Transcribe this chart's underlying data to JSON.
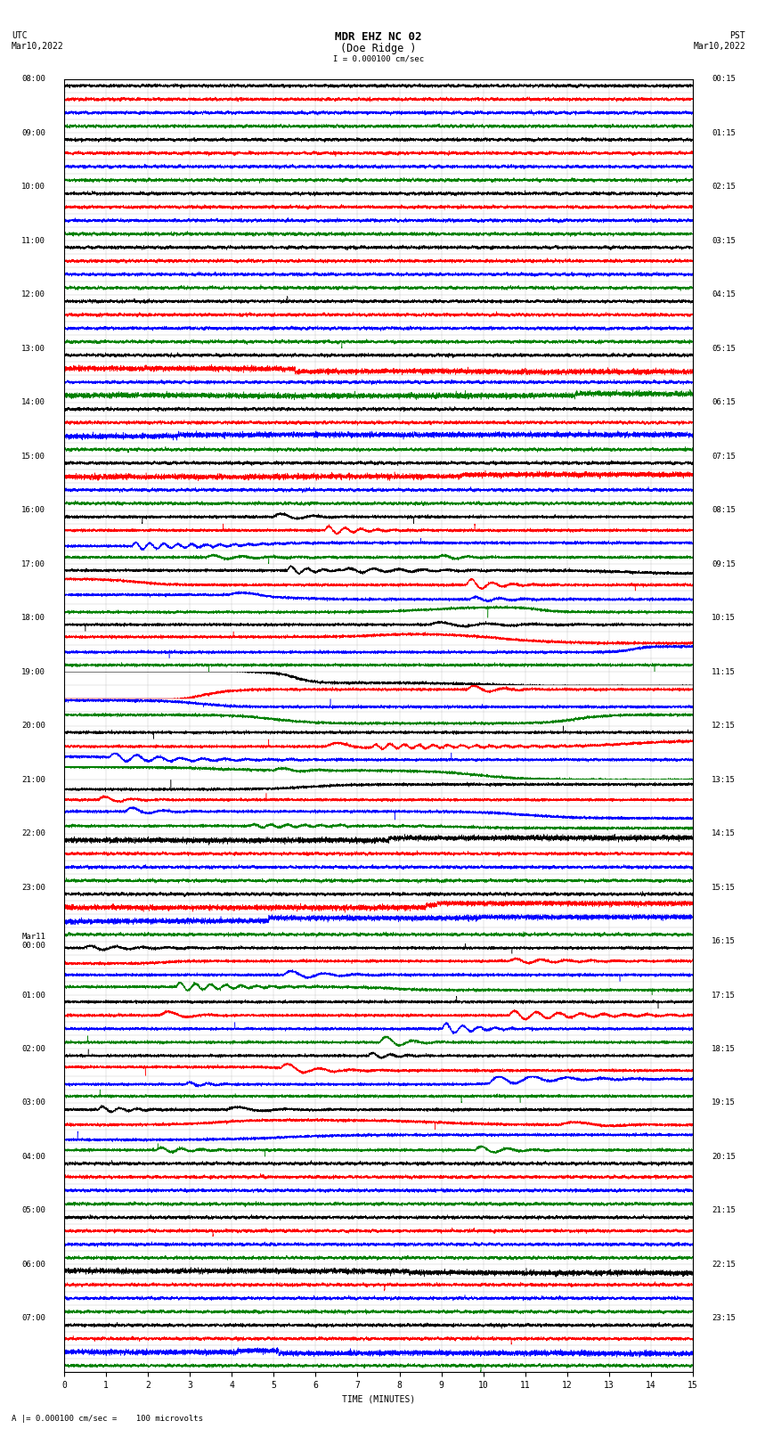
{
  "title_line1": "MDR EHZ NC 02",
  "title_line2": "(Doe Ridge )",
  "scale_label": "I = 0.000100 cm/sec",
  "left_header": "UTC\nMar10,2022",
  "right_header": "PST\nMar10,2022",
  "footer_label": "A |= 0.000100 cm/sec =    100 microvolts",
  "xlabel": "TIME (MINUTES)",
  "bg_color": "#ffffff",
  "colors": [
    "black",
    "red",
    "blue",
    "green"
  ],
  "utc_labels": [
    "08:00",
    "09:00",
    "10:00",
    "11:00",
    "12:00",
    "13:00",
    "14:00",
    "15:00",
    "16:00",
    "17:00",
    "18:00",
    "19:00",
    "20:00",
    "21:00",
    "22:00",
    "23:00",
    "Mar11\n00:00",
    "01:00",
    "02:00",
    "03:00",
    "04:00",
    "05:00",
    "06:00",
    "07:00"
  ],
  "pst_labels": [
    "00:15",
    "01:15",
    "02:15",
    "03:15",
    "04:15",
    "05:15",
    "06:15",
    "07:15",
    "08:15",
    "09:15",
    "10:15",
    "11:15",
    "12:15",
    "13:15",
    "14:15",
    "15:15",
    "16:15",
    "17:15",
    "18:15",
    "19:15",
    "20:15",
    "21:15",
    "22:15",
    "23:15"
  ],
  "n_hours": 24,
  "n_channels": 4,
  "x_min": 0,
  "x_max": 15,
  "x_ticks": [
    0,
    1,
    2,
    3,
    4,
    5,
    6,
    7,
    8,
    9,
    10,
    11,
    12,
    13,
    14,
    15
  ],
  "grid_color": "#888888",
  "tick_label_size": 7,
  "title_size": 9,
  "header_size": 7
}
